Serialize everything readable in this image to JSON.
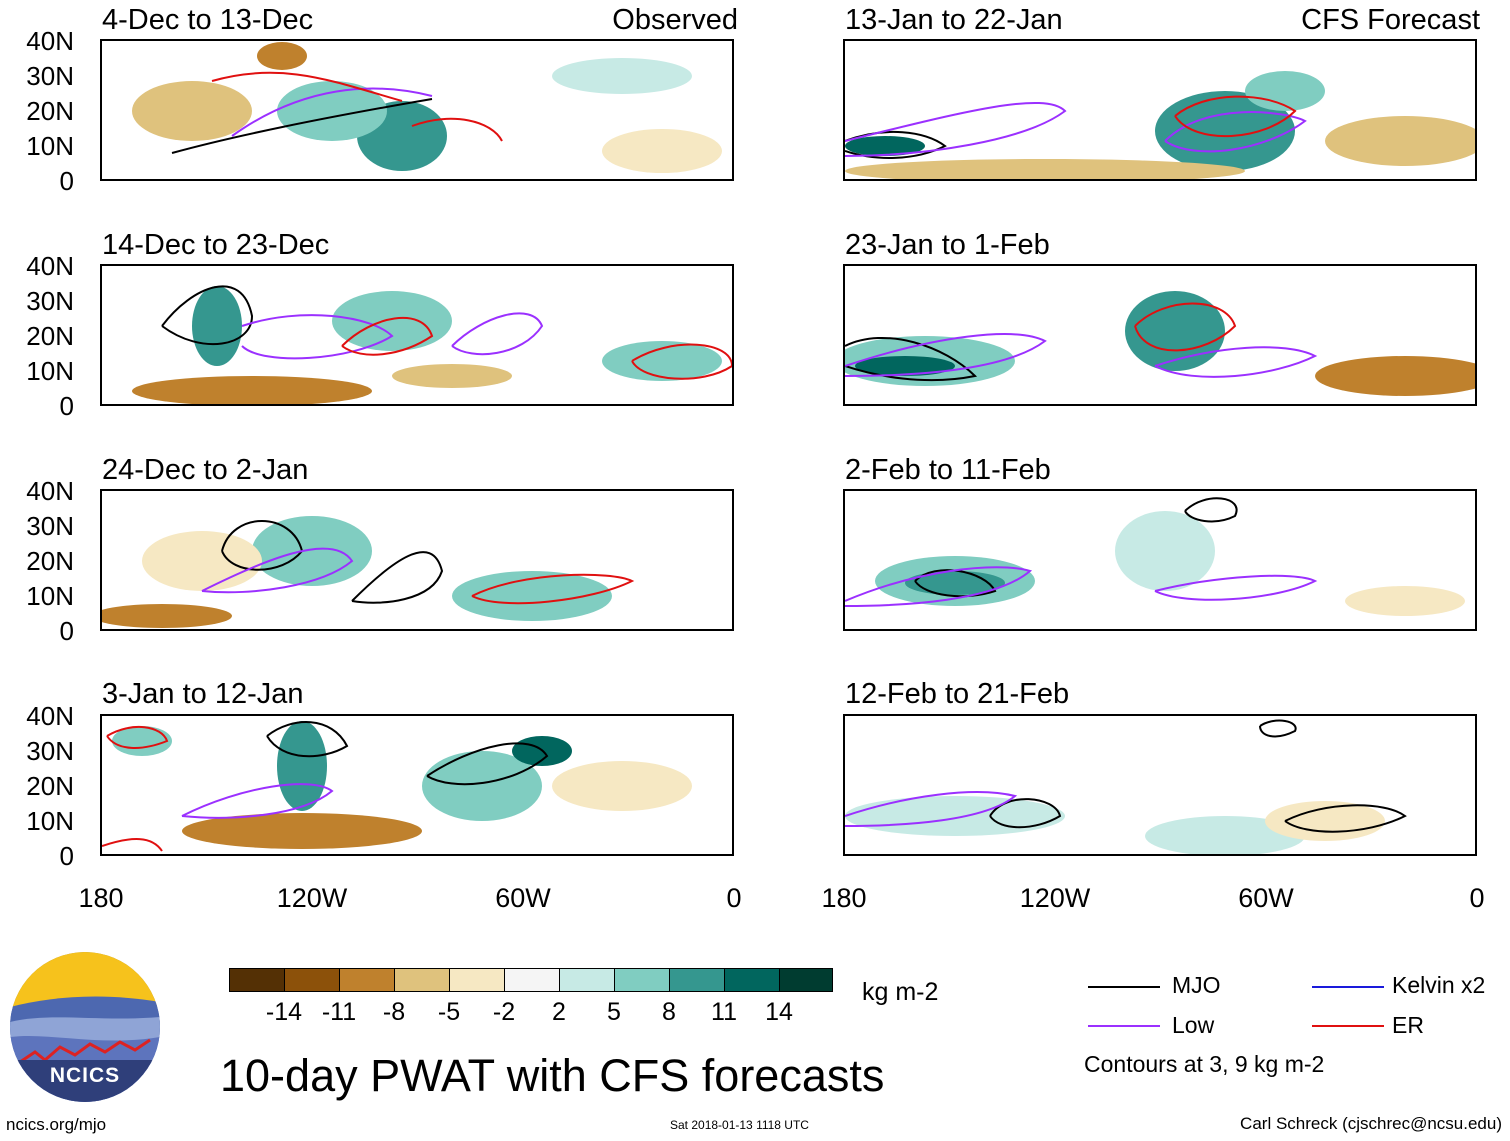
{
  "figure": {
    "title": "10-day PWAT with CFS forecasts",
    "footer_left": "ncics.org/mjo",
    "footer_center": "Sat 2018-01-13 1118 UTC",
    "footer_right": "Carl Schreck (cjschrec@ncsu.edu)",
    "logo_text": "NCICS"
  },
  "columns": {
    "left_label": "Observed",
    "right_label": "CFS Forecast"
  },
  "panels": [
    {
      "title": "4-Dec to 13-Dec"
    },
    {
      "title": "14-Dec to 23-Dec"
    },
    {
      "title": "24-Dec to 2-Jan"
    },
    {
      "title": "3-Jan to 12-Jan"
    },
    {
      "title": "13-Jan to 22-Jan"
    },
    {
      "title": "23-Jan to 1-Feb"
    },
    {
      "title": "2-Feb to 11-Feb"
    },
    {
      "title": "12-Feb to 21-Feb"
    }
  ],
  "axes": {
    "y_ticks": [
      "40N",
      "30N",
      "20N",
      "10N",
      "0"
    ],
    "x_ticks": [
      "180",
      "120W",
      "60W",
      "0"
    ]
  },
  "colorbar": {
    "unit": "kg m-2",
    "ticks": [
      "-14",
      "-11",
      "-8",
      "-5",
      "-2",
      "2",
      "5",
      "8",
      "11",
      "14"
    ],
    "colors": [
      "#543005",
      "#8c510a",
      "#bf812d",
      "#dfc27d",
      "#f6e8c3",
      "#f5f5f5",
      "#c7eae5",
      "#80cdc1",
      "#35978f",
      "#01665e",
      "#003c30"
    ]
  },
  "legend": {
    "items": [
      {
        "label": "MJO",
        "color": "#000000"
      },
      {
        "label": "Kelvin x2",
        "color": "#1a1adb"
      },
      {
        "label": "Low",
        "color": "#9b30ff"
      },
      {
        "label": "ER",
        "color": "#e01010"
      }
    ],
    "note": "Contours at 3, 9 kg m-2"
  }
}
